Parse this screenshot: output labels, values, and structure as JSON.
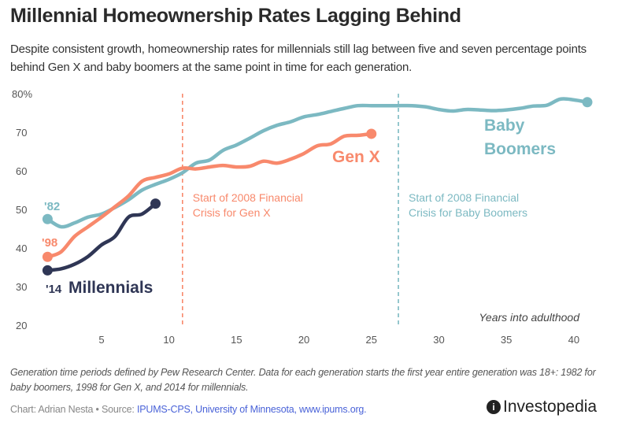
{
  "title": "Millennial Homeownership Rates Lagging Behind",
  "subtitle": "Despite consistent growth, homeownership rates for millennials still lag between five and seven percentage points behind Gen X and baby boomers at the same point in time for each generation.",
  "note": "Generation time periods defined by Pew Research Center. Data for each generation starts the first year entire generation was 18+: 1982 for baby boomers, 1998 for Gen X, and 2014 for millennials.",
  "credit": {
    "prefix": "Chart: Adrian Nesta • Source: ",
    "source_link": "IPUMS-CPS, University of Minnesota, www.ipums.org."
  },
  "logo": {
    "text": "Investopedia",
    "mark": "i"
  },
  "chart_data": {
    "type": "line",
    "xlabel": "Years into adulthood",
    "ylabel": "",
    "xlim": [
      1,
      41
    ],
    "ylim": [
      20,
      80
    ],
    "xticks": [
      "5",
      "10",
      "15",
      "20",
      "25",
      "30",
      "35",
      "40"
    ],
    "yticks": [
      "20",
      "30",
      "40",
      "50",
      "60",
      "70",
      "80%"
    ],
    "grid": false,
    "series": [
      {
        "name": "Baby Boomers",
        "start_label": "'82",
        "color": "#7cb9c2",
        "x": [
          1,
          2,
          3,
          4,
          5,
          6,
          7,
          8,
          9,
          10,
          11,
          12,
          13,
          14,
          15,
          16,
          17,
          18,
          19,
          20,
          21,
          22,
          23,
          24,
          25,
          26,
          27,
          28,
          29,
          30,
          31,
          32,
          33,
          34,
          35,
          36,
          37,
          38,
          39,
          40,
          41
        ],
        "y": [
          47.5,
          45.5,
          46.5,
          48,
          48.8,
          50.5,
          52.5,
          55,
          56.5,
          57.8,
          59.5,
          62,
          62.8,
          65.3,
          66.7,
          68.5,
          70.4,
          71.8,
          72.7,
          74,
          74.6,
          75.4,
          76.2,
          76.9,
          76.9,
          76.9,
          76.9,
          76.9,
          76.6,
          75.9,
          75.5,
          75.9,
          75.8,
          75.6,
          75.8,
          76.2,
          76.8,
          77,
          78.6,
          78.4,
          77.8
        ]
      },
      {
        "name": "Gen X",
        "start_label": "'98",
        "color": "#f8896c",
        "x": [
          1,
          2,
          3,
          4,
          5,
          6,
          7,
          8,
          9,
          10,
          11,
          12,
          13,
          14,
          15,
          16,
          17,
          18,
          19,
          20,
          21,
          22,
          23,
          24,
          25
        ],
        "y": [
          37.7,
          39,
          43,
          45.5,
          48,
          50.7,
          53.5,
          57.3,
          58.3,
          59.2,
          60.7,
          60.5,
          61,
          61.4,
          61,
          61.2,
          62.5,
          62,
          63,
          64.5,
          66.5,
          67,
          69,
          69.2,
          69.6
        ]
      },
      {
        "name": "Millennials",
        "start_label": "'14",
        "color": "#2f3655",
        "x": [
          1,
          2,
          3,
          4,
          5,
          6,
          7,
          8,
          9
        ],
        "y": [
          34.2,
          34.6,
          35.8,
          37.8,
          40.8,
          43,
          48,
          48.8,
          51.5
        ]
      }
    ],
    "annotations": [
      {
        "x": 11,
        "text_lines": [
          "Start of 2008 Financial",
          "Crisis for Gen X"
        ],
        "color": "#f8896c"
      },
      {
        "x": 27,
        "text_lines": [
          "Start of 2008 Financial",
          "Crisis for Baby Boomers"
        ],
        "color": "#7cb9c2"
      }
    ],
    "series_labels": {
      "boomers_lines": [
        "Baby",
        "Boomers"
      ]
    }
  }
}
